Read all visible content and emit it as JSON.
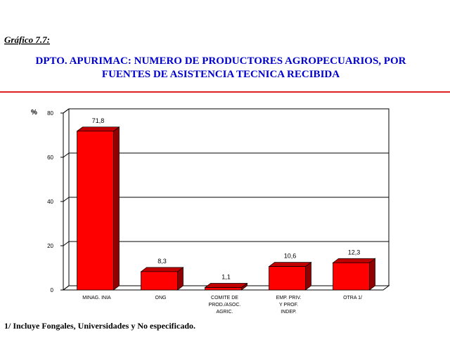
{
  "header": {
    "label": "Gráfico 7.7:",
    "title": [
      "DPTO. APURIMAC: NUMERO DE PRODUCTORES AGROPECUARIOS, POR",
      "FUENTES DE ASISTENCIA TECNICA RECIBIDA"
    ]
  },
  "chart_data": {
    "type": "bar3d",
    "y_label": "%",
    "categories": [
      [
        "MINAG. INIA"
      ],
      [
        "ONG"
      ],
      [
        "COMITE DE",
        "PROD./ASOC.",
        "AGRIC."
      ],
      [
        "EMP. PRIV.",
        "Y PROF.",
        "INDEP."
      ],
      [
        "OTRA 1/"
      ]
    ],
    "values": [
      71.8,
      8.3,
      1.1,
      10.6,
      12.3
    ],
    "value_labels": [
      "71,8",
      "8,3",
      "1,1",
      "10,6",
      "12,3"
    ],
    "color": "#ff0000",
    "ylim": [
      0,
      80
    ],
    "yticks": [
      0,
      20,
      40,
      60,
      80
    ],
    "grid": true
  },
  "footnote": "1/ Incluye Fongales, Universidades y No especificado."
}
